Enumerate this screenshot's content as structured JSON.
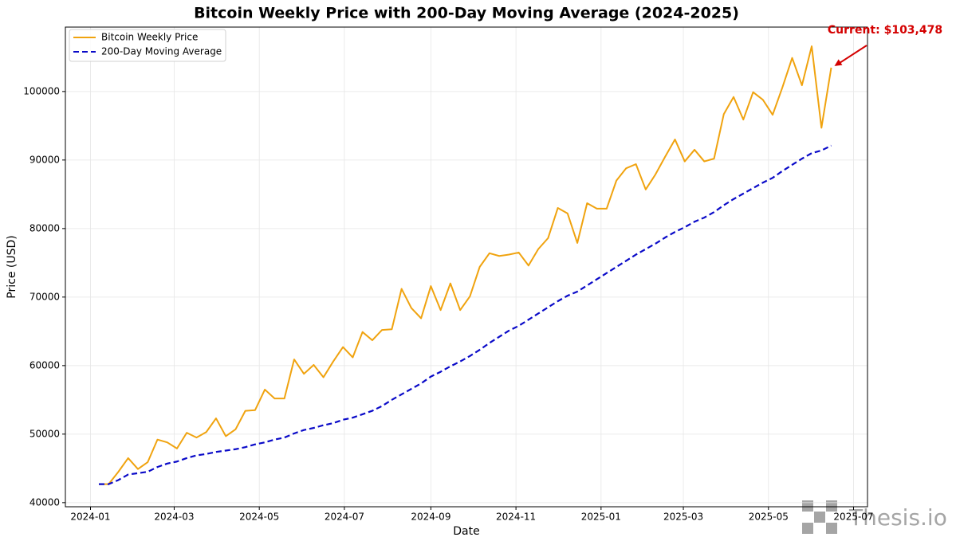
{
  "chart_data": {
    "type": "line",
    "title": "Bitcoin Weekly Price with 200-Day Moving Average (2024-2025)",
    "x_label": "Date",
    "y_label": "Price (USD)",
    "x": [
      "2024-01-07",
      "2024-01-14",
      "2024-01-21",
      "2024-01-28",
      "2024-02-04",
      "2024-02-11",
      "2024-02-18",
      "2024-02-25",
      "2024-03-03",
      "2024-03-10",
      "2024-03-17",
      "2024-03-24",
      "2024-03-31",
      "2024-04-07",
      "2024-04-14",
      "2024-04-21",
      "2024-04-28",
      "2024-05-05",
      "2024-05-12",
      "2024-05-19",
      "2024-05-26",
      "2024-06-02",
      "2024-06-09",
      "2024-06-16",
      "2024-06-23",
      "2024-06-30",
      "2024-07-07",
      "2024-07-14",
      "2024-07-21",
      "2024-07-28",
      "2024-08-04",
      "2024-08-11",
      "2024-08-18",
      "2024-08-25",
      "2024-09-01",
      "2024-09-08",
      "2024-09-15",
      "2024-09-22",
      "2024-09-29",
      "2024-10-06",
      "2024-10-13",
      "2024-10-20",
      "2024-10-27",
      "2024-11-03",
      "2024-11-10",
      "2024-11-17",
      "2024-11-24",
      "2024-12-01",
      "2024-12-08",
      "2024-12-15",
      "2024-12-22",
      "2024-12-29",
      "2025-01-05",
      "2025-01-12",
      "2025-01-19",
      "2025-01-26",
      "2025-02-02",
      "2025-02-09",
      "2025-02-16",
      "2025-02-23",
      "2025-03-02",
      "2025-03-09",
      "2025-03-16",
      "2025-03-23",
      "2025-03-30",
      "2025-04-06",
      "2025-04-13",
      "2025-04-20",
      "2025-04-27",
      "2025-05-04",
      "2025-05-11",
      "2025-05-18",
      "2025-05-25",
      "2025-06-01",
      "2025-06-08",
      "2025-06-15"
    ],
    "series": [
      {
        "name": "Bitcoin Weekly Price",
        "color": "#f0a30f",
        "dash": false,
        "values": [
          42700,
          42700,
          44500,
          46500,
          44900,
          45900,
          49200,
          48800,
          47900,
          50200,
          49500,
          50300,
          52300,
          49700,
          50700,
          53400,
          53500,
          56500,
          55200,
          55200,
          60900,
          58800,
          60100,
          58300,
          60600,
          62700,
          61200,
          64900,
          63700,
          65200,
          65300,
          71200,
          68400,
          66900,
          71600,
          68100,
          72000,
          68100,
          70100,
          74400,
          76400,
          76000,
          76200,
          76500,
          74600,
          77000,
          78600,
          83000,
          82200,
          77900,
          83700,
          82900,
          82900,
          87000,
          88800,
          89400,
          85700,
          87900,
          90500,
          93000,
          89800,
          91500,
          89800,
          90200,
          96700,
          99200,
          95900,
          99900,
          98800,
          96600,
          100600,
          104900,
          100900,
          106600,
          94700,
          103478
        ]
      },
      {
        "name": "200-Day Moving Average",
        "color": "#0a0ac8",
        "dash": true,
        "values": [
          42700,
          42700,
          43300,
          44100,
          44300,
          44500,
          45200,
          45700,
          46000,
          46500,
          46900,
          47100,
          47400,
          47600,
          47800,
          48100,
          48500,
          48800,
          49200,
          49500,
          50100,
          50600,
          50900,
          51300,
          51600,
          52100,
          52400,
          52900,
          53400,
          54100,
          55000,
          55800,
          56600,
          57400,
          58400,
          59100,
          59900,
          60600,
          61400,
          62300,
          63300,
          64200,
          65100,
          65800,
          66700,
          67600,
          68500,
          69400,
          70200,
          70800,
          71700,
          72600,
          73500,
          74400,
          75300,
          76200,
          77000,
          77800,
          78700,
          79500,
          80200,
          81000,
          81600,
          82400,
          83400,
          84300,
          85100,
          85900,
          86700,
          87400,
          88400,
          89300,
          90200,
          91000,
          91400,
          92100
        ]
      }
    ],
    "xlim": [
      "2023-12-14",
      "2025-07-11"
    ],
    "xticks": [
      "2024-01",
      "2024-03",
      "2024-05",
      "2024-07",
      "2024-09",
      "2024-11",
      "2025-01",
      "2025-03",
      "2025-05",
      "2025-07"
    ],
    "ylim": [
      39400,
      109400
    ],
    "yticks": [
      40000,
      50000,
      60000,
      70000,
      80000,
      90000,
      100000
    ],
    "grid": true,
    "legend": "upper left",
    "annotations": [
      {
        "text": "Current: $103,478",
        "color": "#d40000"
      }
    ],
    "watermark": "Thesis.io"
  }
}
